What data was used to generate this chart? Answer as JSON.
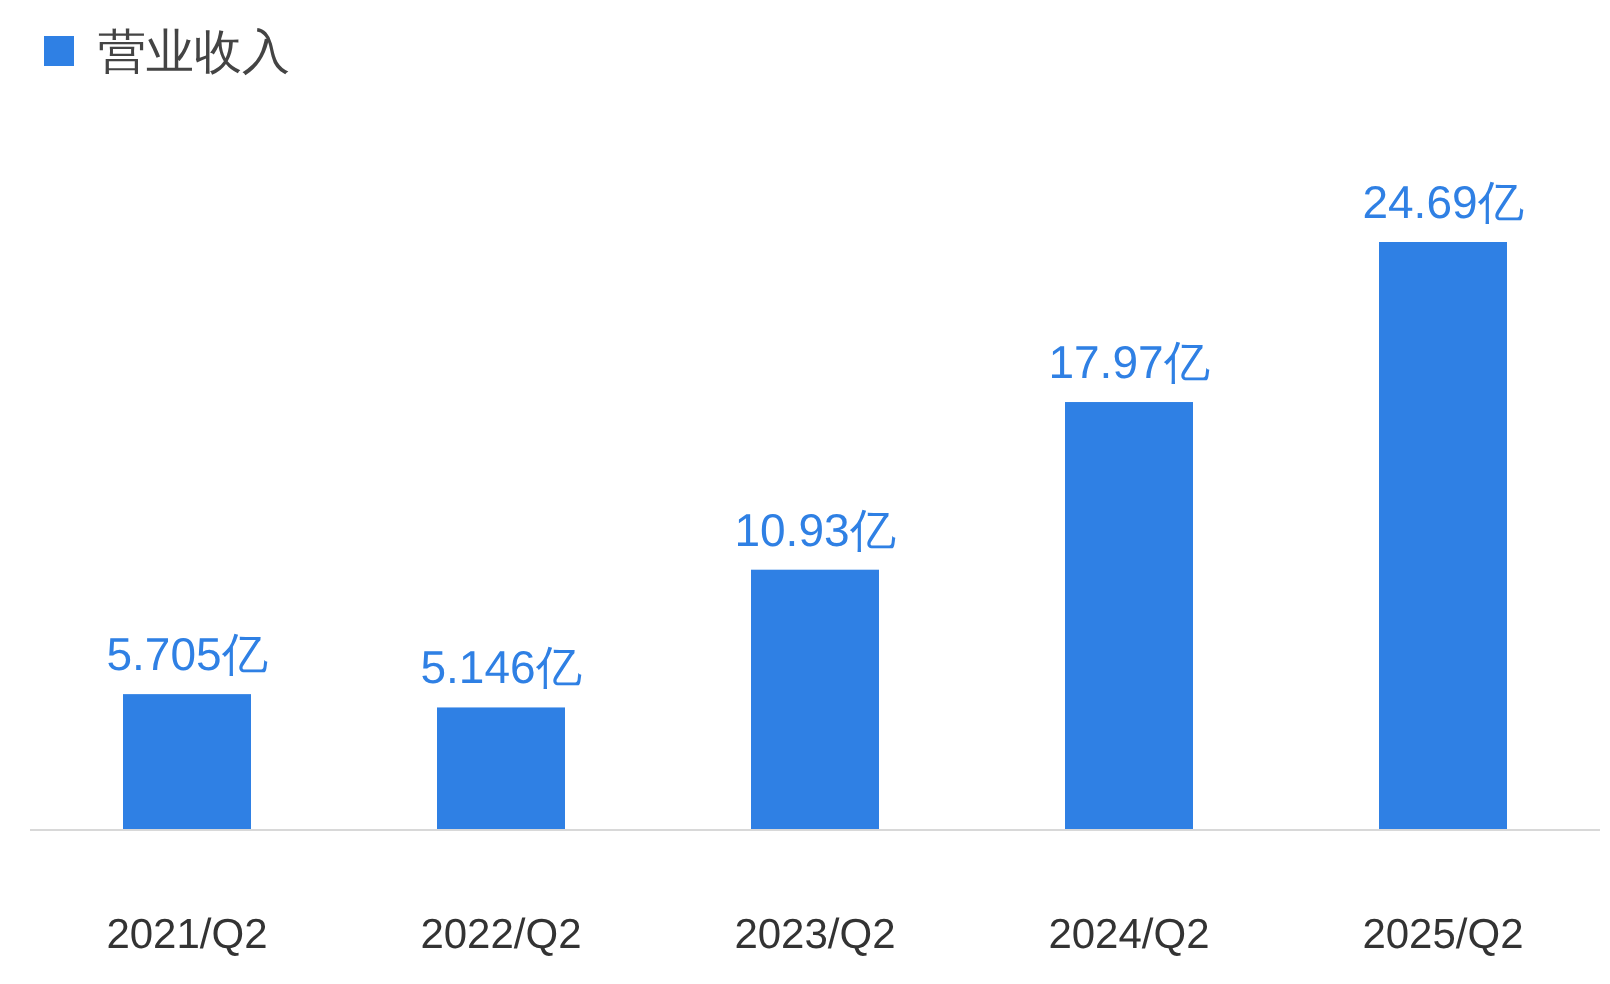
{
  "chart_data": {
    "type": "bar",
    "categories": [
      "2021/Q2",
      "2022/Q2",
      "2023/Q2",
      "2024/Q2",
      "2025/Q2"
    ],
    "series": [
      {
        "name": "营业收入",
        "color": "#2f80e4",
        "values": [
          5.705,
          5.146,
          10.93,
          17.97,
          24.69
        ],
        "value_labels": [
          "5.705亿",
          "5.146亿",
          "10.93亿",
          "17.97亿",
          "24.69亿"
        ]
      }
    ],
    "legend": "top left"
  }
}
